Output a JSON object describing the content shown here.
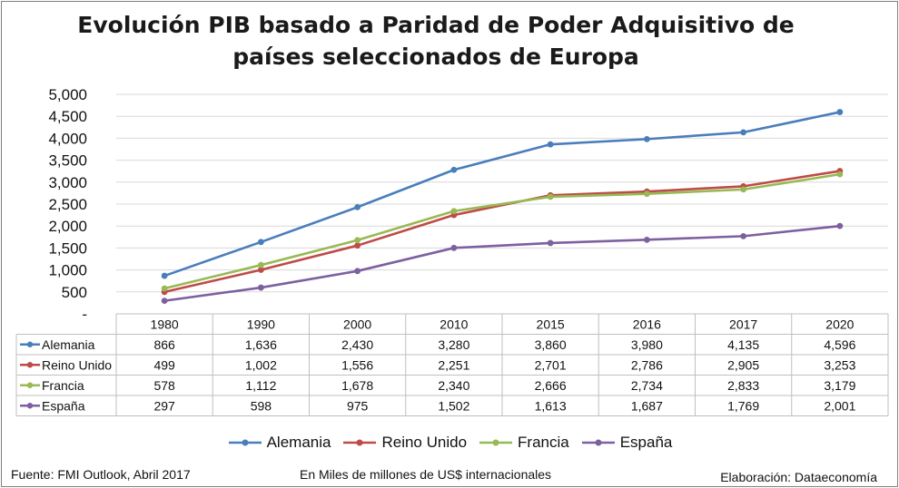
{
  "chart_data": {
    "type": "line",
    "title_lines": [
      "Evolución PIB basado a Paridad de Poder Adquisitivo de",
      "países seleccionados de Europa"
    ],
    "categories": [
      "1980",
      "1990",
      "2000",
      "2010",
      "2015",
      "2016",
      "2017",
      "2020"
    ],
    "series": [
      {
        "name": "Alemania",
        "color": "#4a7ebb",
        "values": [
          866,
          1636,
          2430,
          3280,
          3860,
          3980,
          4135,
          4596
        ],
        "labels": [
          "866",
          "1,636",
          "2,430",
          "3,280",
          "3,860",
          "3,980",
          "4,135",
          "4,596"
        ]
      },
      {
        "name": "Reino Unido",
        "color": "#be4b48",
        "values": [
          499,
          1002,
          1556,
          2251,
          2701,
          2786,
          2905,
          3253
        ],
        "labels": [
          "499",
          "1,002",
          "1,556",
          "2,251",
          "2,701",
          "2,786",
          "2,905",
          "3,253"
        ]
      },
      {
        "name": "Francia",
        "color": "#98b954",
        "values": [
          578,
          1112,
          1678,
          2340,
          2666,
          2734,
          2833,
          3179
        ],
        "labels": [
          "578",
          "1,112",
          "1,678",
          "2,340",
          "2,666",
          "2,734",
          "2,833",
          "3,179"
        ]
      },
      {
        "name": "España",
        "color": "#7d60a0",
        "values": [
          297,
          598,
          975,
          1502,
          1613,
          1687,
          1769,
          2001
        ],
        "labels": [
          "297",
          "598",
          "975",
          "1,502",
          "1,613",
          "1,687",
          "1,769",
          "2,001"
        ]
      }
    ],
    "yticks": [
      0,
      500,
      1000,
      1500,
      2000,
      2500,
      3000,
      3500,
      4000,
      4500,
      5000
    ],
    "ytick_labels": [
      "-",
      "500",
      "1,000",
      "1,500",
      "2,000",
      "2,500",
      "3,000",
      "3,500",
      "4,000",
      "4,500",
      "5,000"
    ],
    "ylim": [
      0,
      5000
    ],
    "grid": true,
    "data_table": true,
    "legend_position": "bottom"
  },
  "footer": {
    "source": "Fuente: FMI Outlook, Abril 2017",
    "units": "En Miles de millones de US$ internacionales",
    "credit": "Elaboración: Dataeconomía"
  }
}
